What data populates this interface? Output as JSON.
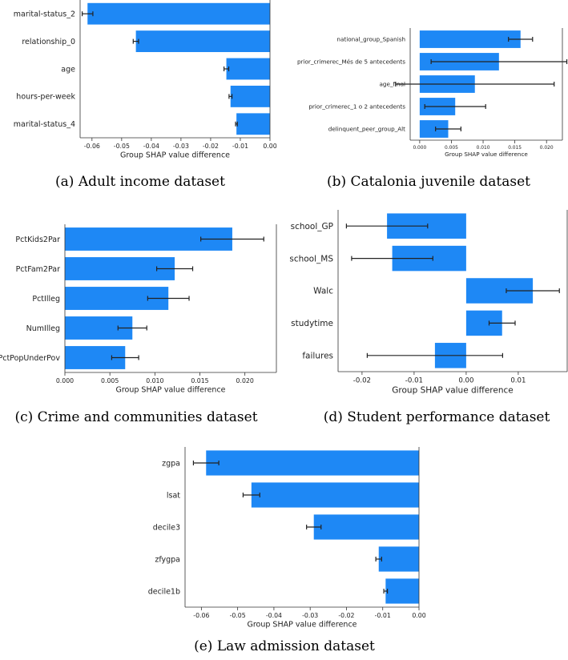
{
  "chart_data": [
    {
      "id": "a",
      "type": "bar",
      "orientation": "horizontal",
      "caption": "(a) Adult income dataset",
      "xlabel": "Group SHAP value difference",
      "xlim": [
        -0.064,
        0.0
      ],
      "xticks": [
        -0.06,
        -0.05,
        -0.04,
        -0.03,
        -0.02,
        -0.01,
        0.0
      ],
      "xtick_labels": [
        "-0.06",
        "-0.05",
        "-0.04",
        "-0.03",
        "-0.02",
        "-0.01",
        "0.00"
      ],
      "categories": [
        "marital-status_2",
        "relationship_0",
        "age",
        "hours-per-week",
        "marital-status_4"
      ],
      "values": [
        -0.0615,
        -0.0452,
        -0.0147,
        -0.0133,
        -0.0113
      ],
      "error": [
        0.0018,
        0.0009,
        0.0008,
        0.0005,
        0.0003
      ],
      "bar_color": "#1e88f5"
    },
    {
      "id": "b",
      "type": "bar",
      "orientation": "horizontal",
      "caption": "(b) Catalonia juvenile dataset",
      "xlabel": "Group SHAP value difference",
      "xlim": [
        -0.0015,
        0.0225
      ],
      "xticks": [
        0.0,
        0.005,
        0.01,
        0.015,
        0.02
      ],
      "xtick_labels": [
        "0.000",
        "0.005",
        "0.010",
        "0.015",
        "0.020"
      ],
      "categories": [
        "national_group_Spanish",
        "prior_crimerec_Més de 5 antecedents",
        "age_final",
        "prior_crimerec_1 o 2 antecedents",
        "delinquent_peer_group_Alt"
      ],
      "values": [
        0.0159,
        0.0125,
        0.0087,
        0.0056,
        0.0045
      ],
      "error": [
        0.0019,
        0.0107,
        0.0125,
        0.0048,
        0.002
      ],
      "bar_color": "#1e88f5"
    },
    {
      "id": "c",
      "type": "bar",
      "orientation": "horizontal",
      "caption": "(c) Crime and communities dataset",
      "xlabel": "Group SHAP value difference",
      "xlim": [
        0.0,
        0.0235
      ],
      "xticks": [
        0.0,
        0.005,
        0.01,
        0.015,
        0.02
      ],
      "xtick_labels": [
        "0.000",
        "0.005",
        "0.010",
        "0.015",
        "0.020"
      ],
      "categories": [
        "PctKids2Par",
        "PctFam2Par",
        "PctIlleg",
        "NumIlleg",
        "PctPopUnderPov"
      ],
      "values": [
        0.0186,
        0.0122,
        0.0115,
        0.0075,
        0.0067
      ],
      "error": [
        0.0035,
        0.002,
        0.0023,
        0.0016,
        0.0015
      ],
      "bar_color": "#1e88f5"
    },
    {
      "id": "d",
      "type": "bar",
      "orientation": "horizontal",
      "caption": "(d) Student performance dataset",
      "xlabel": "Group SHAP value difference",
      "xlim": [
        -0.0246,
        0.0194
      ],
      "xticks": [
        -0.02,
        -0.01,
        0.0,
        0.01
      ],
      "xtick_labels": [
        "-0.02",
        "-0.01",
        "0.00",
        "0.01"
      ],
      "categories": [
        "school_GP",
        "school_MS",
        "Walc",
        "studytime",
        "failures"
      ],
      "values": [
        -0.0152,
        -0.0142,
        0.0128,
        0.0069,
        -0.006
      ],
      "error": [
        0.0078,
        0.0078,
        0.0051,
        0.0025,
        0.013
      ],
      "bar_color": "#1e88f5"
    },
    {
      "id": "e",
      "type": "bar",
      "orientation": "horizontal",
      "caption": "(e) Law admission dataset",
      "xlabel": "Group SHAP value difference",
      "xlim": [
        -0.0645,
        0.0
      ],
      "xticks": [
        -0.06,
        -0.05,
        -0.04,
        -0.03,
        -0.02,
        -0.01,
        0.0
      ],
      "xtick_labels": [
        "-0.06",
        "-0.05",
        "-0.04",
        "-0.03",
        "-0.02",
        "-0.01",
        "0.00"
      ],
      "categories": [
        "zgpa",
        "lsat",
        "decile3",
        "zfygpa",
        "decile1b"
      ],
      "values": [
        -0.0587,
        -0.0462,
        -0.029,
        -0.0111,
        -0.0092
      ],
      "error": [
        0.0035,
        0.0023,
        0.002,
        0.0008,
        0.0005
      ],
      "bar_color": "#1e88f5"
    }
  ]
}
